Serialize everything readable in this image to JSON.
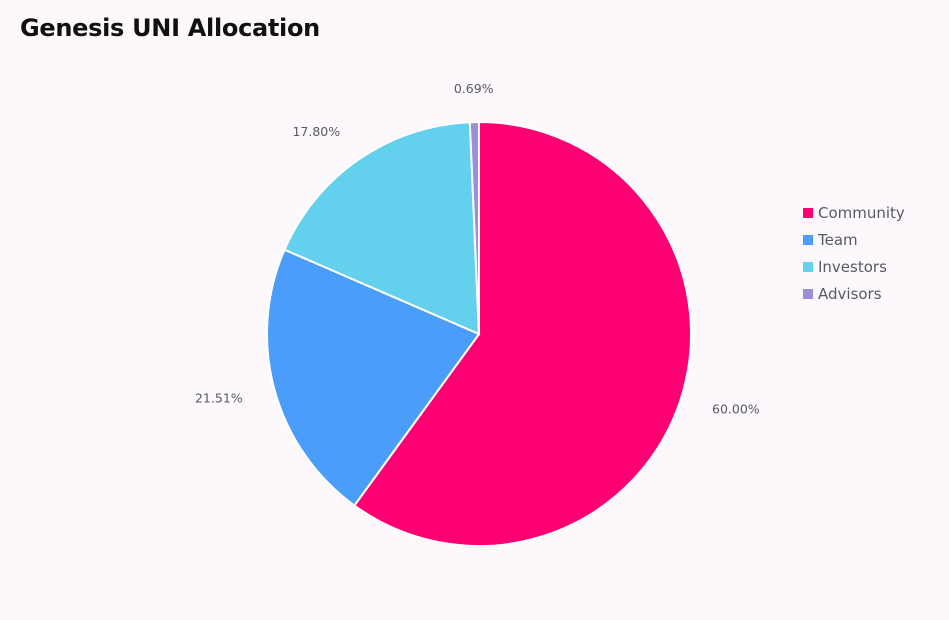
{
  "chart_data": {
    "type": "pie",
    "title": "Genesis UNI Allocation",
    "categories": [
      "Community",
      "Team",
      "Investors",
      "Advisors"
    ],
    "values": [
      60.0,
      21.51,
      17.8,
      0.69
    ],
    "labels": [
      "60.00%",
      "21.51%",
      "17.80%",
      "0.69%"
    ],
    "colors": [
      "#ff0073",
      "#4a9df8",
      "#63d0ee",
      "#9b8fd6"
    ],
    "legend_position": "right",
    "start": "top",
    "direction": "clockwise"
  }
}
